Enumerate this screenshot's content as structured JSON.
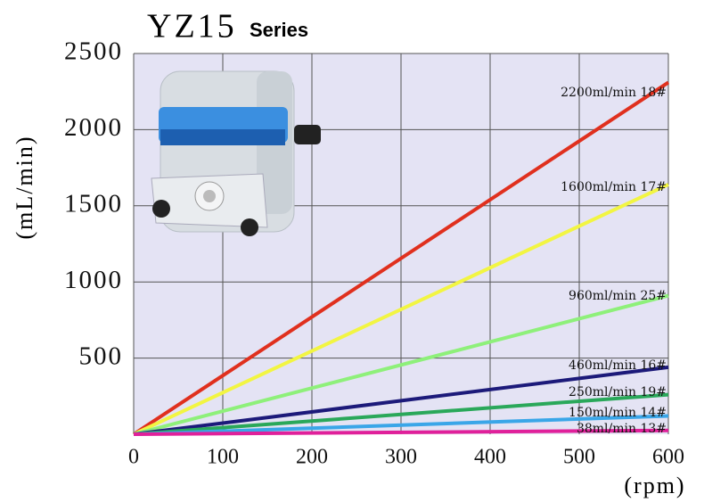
{
  "chart_data": {
    "type": "line",
    "title": "YZ15",
    "subtitle": "Series",
    "y_label": "(mL/min)",
    "x_label": "(rpm)",
    "x": [
      0,
      600
    ],
    "xlim": [
      0,
      600
    ],
    "xticks": [
      0,
      100,
      200,
      300,
      400,
      500,
      600
    ],
    "ylim": [
      0,
      2500
    ],
    "yticks": [
      500,
      1000,
      1500,
      2000,
      2500
    ],
    "grid": true,
    "series": [
      {
        "name": "2200ml/min 18#",
        "color": "#e0301e",
        "values": [
          0,
          2310
        ]
      },
      {
        "name": "1600ml/min 17#",
        "color": "#f2f542",
        "values": [
          0,
          1640
        ]
      },
      {
        "name": "960ml/min 25#",
        "color": "#8ef07a",
        "values": [
          0,
          910
        ]
      },
      {
        "name": "460ml/min 16#",
        "color": "#1c1a7a",
        "values": [
          0,
          440
        ]
      },
      {
        "name": "250ml/min 19#",
        "color": "#2aa85a",
        "values": [
          0,
          260
        ]
      },
      {
        "name": "150ml/min 14#",
        "color": "#3aa6e8",
        "values": [
          0,
          120
        ]
      },
      {
        "name": "38ml/min 13#",
        "color": "#e0209a",
        "values": [
          0,
          25
        ]
      }
    ]
  }
}
